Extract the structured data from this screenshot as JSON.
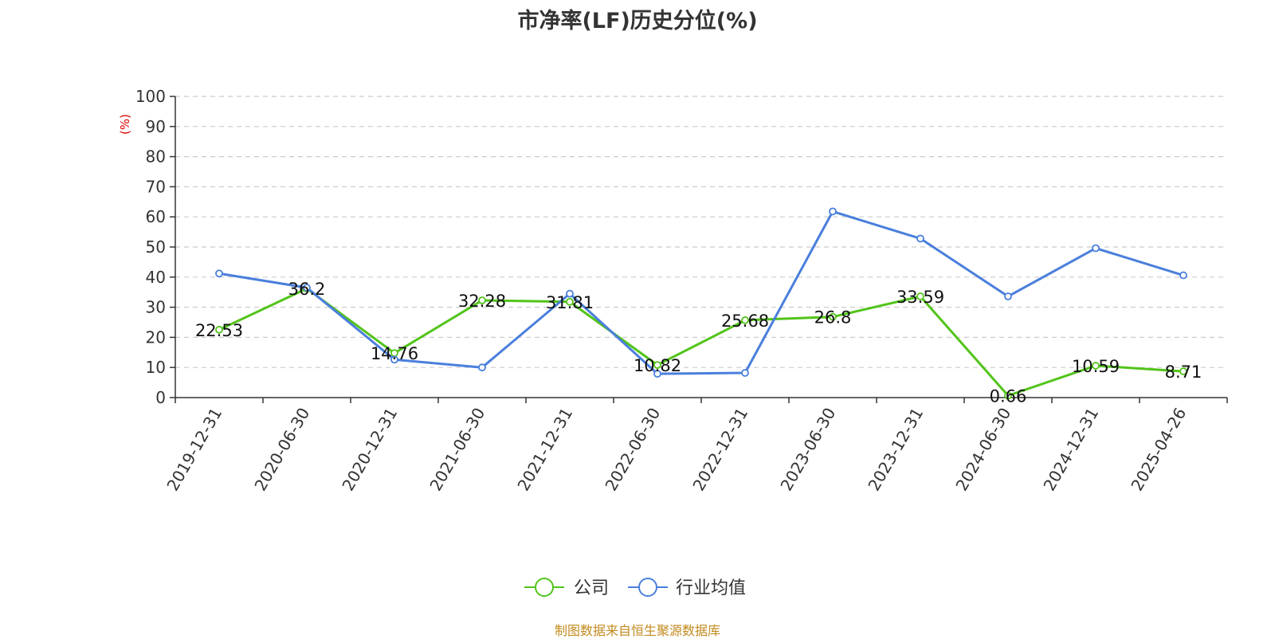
{
  "chart_data": {
    "type": "line",
    "title": "市净率(LF)历史分位(%)",
    "ylabel": "(%)",
    "ylim": [
      0,
      100
    ],
    "yticks": [
      0,
      10,
      20,
      30,
      40,
      50,
      60,
      70,
      80,
      90,
      100
    ],
    "categories": [
      "2019-12-31",
      "2020-06-30",
      "2020-12-31",
      "2021-06-30",
      "2021-12-31",
      "2022-06-30",
      "2022-12-31",
      "2023-06-30",
      "2023-12-31",
      "2024-06-30",
      "2024-12-31",
      "2025-04-26"
    ],
    "grid": true,
    "legend_position": "bottom",
    "series": [
      {
        "name": "公司",
        "color": "#52c41a",
        "values": [
          22.53,
          36.2,
          14.76,
          32.28,
          31.81,
          10.82,
          25.68,
          26.8,
          33.59,
          0.66,
          10.59,
          8.71
        ],
        "labels": [
          "22.53",
          "36.2",
          "14.76",
          "32.28",
          "31.81",
          "10.82",
          "25.68",
          "26.8",
          "33.59",
          "0.66",
          "10.59",
          "8.71"
        ]
      },
      {
        "name": "行业均值",
        "color": "#4a7fdc",
        "values": [
          41.2,
          36.5,
          12.6,
          10.0,
          34.5,
          7.9,
          8.2,
          61.8,
          52.8,
          33.6,
          49.6,
          40.6
        ]
      }
    ]
  },
  "source": "制图数据来自恒生聚源数据库"
}
